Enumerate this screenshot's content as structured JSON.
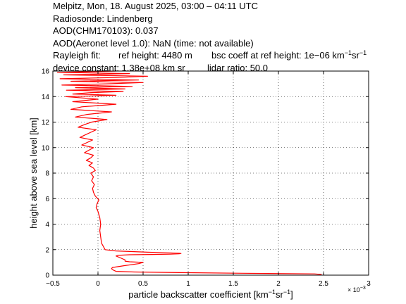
{
  "header": {
    "title": "Melpitz, Mon, 18. August 2025, 03:00 – 04:11 UTC",
    "radiosonde": "Radiosonde: Lindenberg",
    "aod_chm": "AOD(CHM170103): 0.037",
    "aod_aeronet": "AOD(Aeronet level 1.0): NaN   (time: not available)",
    "rayleigh_label": "Rayleigh fit:",
    "ref_height": "ref height: 4480 m",
    "bsc_coeff_prefix": "bsc coeff at ref height: 1e−06 km",
    "bsc_exp1": "−1",
    "bsc_mid": "sr",
    "bsc_exp2": "−1",
    "device_constant": "device constant: 1.38e+08 km sr",
    "lidar_ratio": "lidar ratio: 50.0"
  },
  "chart_data": {
    "type": "line",
    "xlabel_prefix": "particle backscatter coefficient [km",
    "xlabel_exp1": "−1",
    "xlabel_mid": "sr",
    "xlabel_exp2": "−1",
    "xlabel_suffix": "]",
    "ylabel": "height above sea level [km]",
    "x_multiplier": "× 10",
    "x_multiplier_exp": "−3",
    "xlim": [
      -0.5,
      3
    ],
    "ylim": [
      0,
      16
    ],
    "xticks": [
      -0.5,
      0,
      0.5,
      1,
      1.5,
      2,
      2.5,
      3
    ],
    "xtick_labels": [
      "−0.5",
      "0",
      "0.5",
      "1",
      "1.5",
      "2",
      "2.5",
      "3"
    ],
    "yticks": [
      0,
      2,
      4,
      6,
      8,
      10,
      12,
      14,
      16
    ],
    "ytick_labels": [
      "0",
      "2",
      "4",
      "6",
      "8",
      "10",
      "12",
      "14",
      "16"
    ],
    "grid": true,
    "series": [
      {
        "color": "#ff0000",
        "x": [
          2.48,
          2.4,
          1.6,
          0.9,
          0.4,
          0.2,
          0.17,
          0.15,
          0.16,
          0.3,
          0.45,
          0.5,
          0.35,
          0.3,
          0.3,
          0.25,
          0.2,
          0.22,
          0.35,
          0.6,
          0.8,
          0.9,
          0.92,
          0.9,
          0.55,
          0.2,
          0.08,
          0.04,
          0.03,
          0.02,
          0.03,
          0.02,
          0.0,
          -0.02,
          -0.01,
          0.01,
          -0.03,
          -0.05,
          -0.06,
          -0.04,
          -0.07,
          -0.05,
          -0.08,
          -0.03,
          -0.05,
          -0.1,
          -0.06,
          -0.13,
          -0.08,
          -0.05,
          -0.15,
          -0.1,
          -0.05,
          -0.18,
          -0.12,
          -0.06,
          -0.2,
          -0.14,
          -0.08,
          -0.02,
          -0.22,
          -0.15,
          -0.07,
          0.1,
          -0.25,
          -0.12,
          0.15,
          -0.3,
          -0.18,
          0.2,
          -0.28,
          0.0,
          -0.36,
          0.2,
          -0.28,
          -0.1,
          0.28,
          -0.35,
          0.3,
          -0.25,
          0.38,
          -0.4,
          0.1,
          0.5,
          -0.3,
          0.45,
          -0.42,
          0.2,
          0.55,
          -0.38,
          0.35,
          -0.45,
          0.2
        ],
        "y": [
          0.05,
          0.1,
          0.15,
          0.2,
          0.25,
          0.3,
          0.4,
          0.5,
          0.6,
          0.75,
          0.9,
          1.0,
          1.05,
          1.1,
          1.2,
          1.35,
          1.5,
          1.55,
          1.6,
          1.62,
          1.65,
          1.68,
          1.7,
          1.72,
          1.8,
          1.9,
          2.0,
          2.5,
          3.0,
          3.5,
          4.0,
          4.5,
          5.0,
          5.3,
          5.6,
          5.9,
          6.2,
          6.5,
          6.8,
          7.1,
          7.4,
          7.7,
          8.0,
          8.2,
          8.4,
          8.6,
          8.8,
          9.0,
          9.2,
          9.4,
          9.6,
          9.8,
          10.0,
          10.2,
          10.4,
          10.6,
          10.8,
          11.0,
          11.2,
          11.4,
          11.6,
          11.8,
          12.0,
          12.2,
          12.4,
          12.6,
          12.8,
          13.0,
          13.2,
          13.4,
          13.6,
          13.8,
          14.0,
          14.1,
          14.2,
          14.3,
          14.4,
          14.5,
          14.6,
          14.7,
          14.8,
          14.9,
          15.0,
          15.1,
          15.2,
          15.3,
          15.4,
          15.5,
          15.6,
          15.7,
          15.8,
          15.9,
          16.0
        ]
      }
    ]
  }
}
